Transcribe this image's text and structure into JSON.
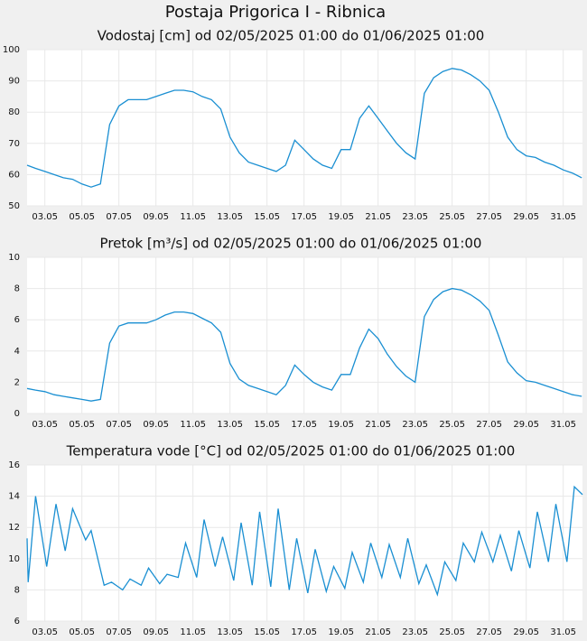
{
  "title": "Postaja Prigorica I - Ribnica",
  "chart_data": [
    {
      "type": "line",
      "title": "Vodostaj [cm] od 02/05/2025 01:00 do 01/06/2025 01:00",
      "color": "#1a8fd2",
      "grid": true,
      "xlim": [
        2.04,
        32.04
      ],
      "ylim": [
        50,
        100
      ],
      "yticks": [
        50,
        60,
        70,
        80,
        90,
        100
      ],
      "xticks": [
        {
          "value": 3,
          "label": "03.05"
        },
        {
          "value": 5,
          "label": "05.05"
        },
        {
          "value": 7,
          "label": "07.05"
        },
        {
          "value": 9,
          "label": "09.05"
        },
        {
          "value": 11,
          "label": "11.05"
        },
        {
          "value": 13,
          "label": "13.05"
        },
        {
          "value": 15,
          "label": "15.05"
        },
        {
          "value": 17,
          "label": "17.05"
        },
        {
          "value": 19,
          "label": "19.05"
        },
        {
          "value": 21,
          "label": "21.05"
        },
        {
          "value": 23,
          "label": "23.05"
        },
        {
          "value": 25,
          "label": "25.05"
        },
        {
          "value": 27,
          "label": "27.05"
        },
        {
          "value": 29,
          "label": "29.05"
        },
        {
          "value": 31,
          "label": "31.05"
        }
      ],
      "x": [
        2.04,
        2.5,
        3,
        3.5,
        4,
        4.5,
        5,
        5.5,
        6,
        6.5,
        7,
        7.5,
        8,
        8.5,
        9,
        9.5,
        10,
        10.5,
        11,
        11.5,
        12,
        12.5,
        13,
        13.5,
        14,
        14.5,
        15,
        15.5,
        16,
        16.5,
        17,
        17.5,
        18,
        18.5,
        19,
        19.5,
        20,
        20.5,
        21,
        21.5,
        22,
        22.5,
        23,
        23.5,
        24,
        24.5,
        25,
        25.5,
        26,
        26.5,
        27,
        27.5,
        28,
        28.5,
        29,
        29.5,
        30,
        30.5,
        31,
        31.5,
        32
      ],
      "values": [
        63,
        62,
        61,
        60,
        59,
        58.5,
        57,
        56,
        57,
        76,
        82,
        84,
        84,
        84,
        85,
        86,
        87,
        87,
        86.5,
        85,
        84,
        81,
        72,
        67,
        64,
        63,
        62,
        61,
        63,
        71,
        68,
        65,
        63,
        62,
        68,
        68,
        78,
        82,
        78,
        74,
        70,
        67,
        65,
        86,
        91,
        93,
        94,
        93.5,
        92,
        90,
        87,
        80,
        72,
        68,
        66,
        65.5,
        64,
        63,
        61.5,
        60.5,
        59
      ]
    },
    {
      "type": "line",
      "title": "Pretok [m³/s] od 02/05/2025 01:00 do 01/06/2025 01:00",
      "color": "#1a8fd2",
      "grid": true,
      "xlim": [
        2.04,
        32.04
      ],
      "ylim": [
        0,
        10
      ],
      "yticks": [
        0,
        2,
        4,
        6,
        8,
        10
      ],
      "xticks": [
        {
          "value": 3,
          "label": "03.05"
        },
        {
          "value": 5,
          "label": "05.05"
        },
        {
          "value": 7,
          "label": "07.05"
        },
        {
          "value": 9,
          "label": "09.05"
        },
        {
          "value": 11,
          "label": "11.05"
        },
        {
          "value": 13,
          "label": "13.05"
        },
        {
          "value": 15,
          "label": "15.05"
        },
        {
          "value": 17,
          "label": "17.05"
        },
        {
          "value": 19,
          "label": "19.05"
        },
        {
          "value": 21,
          "label": "21.05"
        },
        {
          "value": 23,
          "label": "23.05"
        },
        {
          "value": 25,
          "label": "25.05"
        },
        {
          "value": 27,
          "label": "27.05"
        },
        {
          "value": 29,
          "label": "29.05"
        },
        {
          "value": 31,
          "label": "31.05"
        }
      ],
      "x": [
        2.04,
        2.5,
        3,
        3.5,
        4,
        4.5,
        5,
        5.5,
        6,
        6.5,
        7,
        7.5,
        8,
        8.5,
        9,
        9.5,
        10,
        10.5,
        11,
        11.5,
        12,
        12.5,
        13,
        13.5,
        14,
        14.5,
        15,
        15.5,
        16,
        16.5,
        17,
        17.5,
        18,
        18.5,
        19,
        19.5,
        20,
        20.5,
        21,
        21.5,
        22,
        22.5,
        23,
        23.5,
        24,
        24.5,
        25,
        25.5,
        26,
        26.5,
        27,
        27.5,
        28,
        28.5,
        29,
        29.5,
        30,
        30.5,
        31,
        31.5,
        32
      ],
      "values": [
        1.6,
        1.5,
        1.4,
        1.2,
        1.1,
        1.0,
        0.9,
        0.8,
        0.9,
        4.5,
        5.6,
        5.8,
        5.8,
        5.8,
        6.0,
        6.3,
        6.5,
        6.5,
        6.4,
        6.1,
        5.8,
        5.2,
        3.2,
        2.2,
        1.8,
        1.6,
        1.4,
        1.2,
        1.8,
        3.1,
        2.5,
        2.0,
        1.7,
        1.5,
        2.5,
        2.5,
        4.2,
        5.4,
        4.8,
        3.8,
        3.0,
        2.4,
        2.0,
        6.2,
        7.3,
        7.8,
        8.0,
        7.9,
        7.6,
        7.2,
        6.6,
        5.0,
        3.3,
        2.6,
        2.1,
        2.0,
        1.8,
        1.6,
        1.4,
        1.2,
        1.1
      ]
    },
    {
      "type": "line",
      "title": "Temperatura vode [°C] od 02/05/2025 01:00 do 01/06/2025 01:00",
      "color": "#1a8fd2",
      "grid": true,
      "xlim": [
        2.04,
        32.04
      ],
      "ylim": [
        6,
        16
      ],
      "yticks": [
        6,
        8,
        10,
        12,
        14,
        16
      ],
      "xticks": [
        {
          "value": 3,
          "label": "03.05"
        },
        {
          "value": 5,
          "label": "05.05"
        },
        {
          "value": 7,
          "label": "07.05"
        },
        {
          "value": 9,
          "label": "09.05"
        },
        {
          "value": 11,
          "label": "11.05"
        },
        {
          "value": 13,
          "label": "13.05"
        },
        {
          "value": 15,
          "label": "15.05"
        },
        {
          "value": 17,
          "label": "17.05"
        },
        {
          "value": 19,
          "label": "19.05"
        },
        {
          "value": 21,
          "label": "21.05"
        },
        {
          "value": 23,
          "label": "23.05"
        },
        {
          "value": 25,
          "label": "25.05"
        },
        {
          "value": 27,
          "label": "27.05"
        },
        {
          "value": 29,
          "label": "29.05"
        },
        {
          "value": 31,
          "label": "31.05"
        }
      ],
      "x": [
        2.04,
        2.1,
        2.5,
        3.1,
        3.6,
        4.1,
        4.5,
        5.2,
        5.5,
        6.2,
        6.6,
        7.2,
        7.6,
        8.2,
        8.6,
        9.2,
        9.6,
        10.2,
        10.6,
        11.2,
        11.6,
        12.2,
        12.6,
        13.2,
        13.6,
        14.2,
        14.6,
        15.2,
        15.6,
        16.2,
        16.6,
        17.2,
        17.6,
        18.2,
        18.6,
        19.2,
        19.6,
        20.2,
        20.6,
        21.2,
        21.6,
        22.2,
        22.6,
        23.2,
        23.6,
        24.2,
        24.6,
        25.2,
        25.6,
        26.2,
        26.6,
        27.2,
        27.6,
        28.2,
        28.6,
        29.2,
        29.6,
        30.2,
        30.6,
        31.2,
        31.6,
        32.04
      ],
      "values": [
        11.3,
        8.5,
        14,
        9.5,
        13.5,
        10.5,
        13.2,
        11.2,
        11.8,
        8.3,
        8.5,
        8.0,
        8.7,
        8.3,
        9.4,
        8.4,
        9.0,
        8.8,
        11.0,
        8.8,
        12.5,
        9.5,
        11.4,
        8.6,
        12.3,
        8.3,
        13.0,
        8.2,
        13.2,
        8.0,
        11.3,
        7.8,
        10.6,
        7.9,
        9.5,
        8.1,
        10.4,
        8.5,
        11.0,
        8.8,
        10.9,
        8.8,
        11.3,
        8.4,
        9.6,
        7.7,
        9.8,
        8.6,
        11.0,
        9.8,
        11.7,
        9.8,
        11.5,
        9.2,
        11.8,
        9.4,
        13.0,
        9.8,
        13.5,
        9.8,
        14.6,
        14.1
      ]
    }
  ]
}
